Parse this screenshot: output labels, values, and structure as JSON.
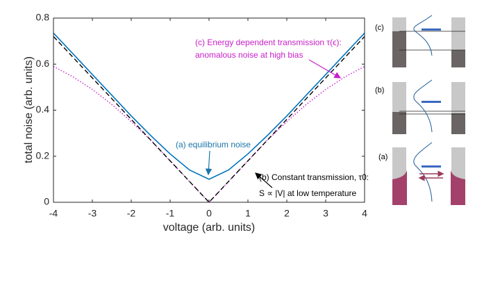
{
  "chart_data": {
    "type": "line",
    "x_label": "voltage (arb. units)",
    "y_label": "total noise (arb. units)",
    "x": [
      -4,
      -3.5,
      -3,
      -2.5,
      -2,
      -1.5,
      -1,
      -0.5,
      0,
      0.5,
      1,
      1.5,
      2,
      2.5,
      3,
      3.5,
      4
    ],
    "series": [
      {
        "name": "(c) energy dependent",
        "color": "#c81ec8",
        "style": "dotted",
        "values": [
          0.59,
          0.545,
          0.49,
          0.425,
          0.35,
          0.27,
          0.18,
          0.09,
          0,
          0.09,
          0.18,
          0.27,
          0.35,
          0.425,
          0.49,
          0.545,
          0.59
        ]
      },
      {
        "name": "(b) constant",
        "color": "#000000",
        "style": "dashed",
        "values": [
          0.72,
          0.63,
          0.54,
          0.45,
          0.36,
          0.27,
          0.18,
          0.09,
          0,
          0.09,
          0.18,
          0.27,
          0.36,
          0.45,
          0.54,
          0.63,
          0.72
        ]
      },
      {
        "name": "(a) equilibrium",
        "color": "#0072bd",
        "style": "solid",
        "values": [
          0.735,
          0.645,
          0.555,
          0.465,
          0.375,
          0.29,
          0.21,
          0.14,
          0.1,
          0.14,
          0.21,
          0.29,
          0.375,
          0.465,
          0.555,
          0.645,
          0.735
        ]
      }
    ],
    "xlim": [
      -4,
      4
    ],
    "ylim": [
      0,
      0.8
    ],
    "xticks": [
      -4,
      -3,
      -2,
      -1,
      0,
      1,
      2,
      3,
      4
    ],
    "yticks": [
      0,
      0.2,
      0.4,
      0.6,
      0.8
    ],
    "annotations": [
      "(a) equilibrium noise",
      "(b) Constant transmission, τ0:",
      "S ∝ |V| at low temperature",
      "(c) Energy dependent transmission τ(ϵ):",
      "anomalous noise at high bias"
    ]
  },
  "diagram": {
    "labels": [
      "(c)",
      "(b)",
      "(a)"
    ]
  }
}
